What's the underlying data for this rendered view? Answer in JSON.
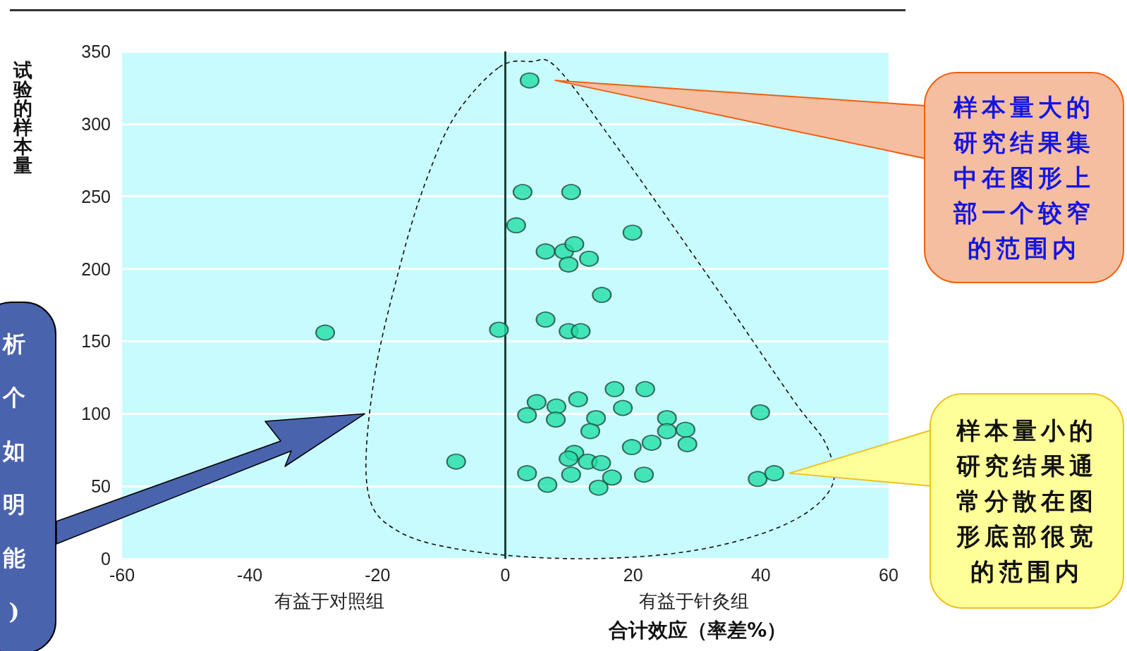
{
  "chart_data": {
    "type": "scatter",
    "xlabel": "合计效应（率差%）",
    "ylabel": "试验的样本量",
    "color": "#22e0a6",
    "marker": "circle",
    "grid": "y",
    "xlim": [
      -60,
      60
    ],
    "xticks": [
      -60,
      -40,
      -20,
      0,
      20,
      40,
      60
    ],
    "ylim": [
      0,
      350
    ],
    "yticks": [
      0,
      50,
      100,
      150,
      200,
      250,
      300,
      350
    ],
    "x": [
      3.8,
      2.7,
      10.3,
      1.7,
      19.9,
      6.3,
      9.2,
      10.8,
      9.9,
      13.1,
      15.1,
      -28.2,
      -1.0,
      6.3,
      9.9,
      11.8,
      17.1,
      21.9,
      4.9,
      11.4,
      8.0,
      3.4,
      7.9,
      14.2,
      18.4,
      25.3,
      39.9,
      13.3,
      25.3,
      28.2,
      22.9,
      19.8,
      28.5,
      10.8,
      9.9,
      12.9,
      15.0,
      -7.7,
      3.4,
      10.3,
      16.7,
      21.7,
      6.6,
      14.6,
      39.5,
      42.1
    ],
    "values": [
      330,
      253,
      253,
      230,
      225,
      212,
      212,
      217,
      203,
      207,
      182,
      156,
      158,
      165,
      157,
      157,
      117,
      117,
      108,
      110,
      105,
      99,
      96,
      97,
      104,
      97,
      101,
      88,
      88,
      89,
      80,
      77,
      79,
      73,
      69,
      67,
      66,
      67,
      59,
      58,
      56,
      58,
      51,
      49,
      55,
      59
    ],
    "ref_lines": [
      {
        "axis": "x",
        "value": 0,
        "color": "#17403a"
      }
    ],
    "annotations": [
      "样本量大的研究结果集中在图形上部一个较窄的范围内",
      "样本量小的研究结果通常分散在图形底部很宽的范围内",
      "析个如明能)",
      "有益于对照组",
      "有益于针灸组"
    ]
  }
}
